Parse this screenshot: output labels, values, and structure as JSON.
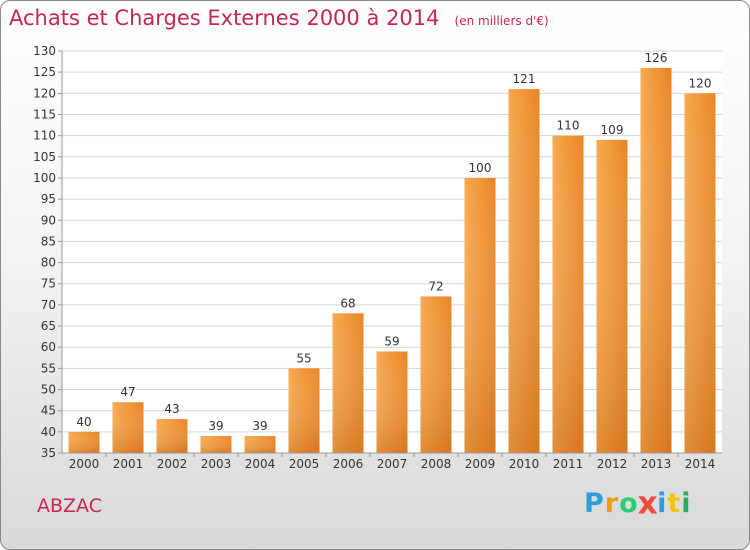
{
  "header": {
    "title": "Achats et Charges Externes 2000 à 2014",
    "subtitle": "(en milliers d'€)"
  },
  "footer": {
    "commune": "ABZAC",
    "brand_letters": [
      "P",
      "r",
      "o",
      "x",
      "i",
      "t",
      "i"
    ],
    "brand_colors": [
      "#2a9fd6",
      "#f39c12",
      "#2ecc71",
      "#e74c3c",
      "#3498db",
      "#f1c40f",
      "#27ae60"
    ]
  },
  "chart_data": {
    "type": "bar",
    "categories": [
      "2000",
      "2001",
      "2002",
      "2003",
      "2004",
      "2005",
      "2006",
      "2007",
      "2008",
      "2009",
      "2010",
      "2011",
      "2012",
      "2013",
      "2014"
    ],
    "values": [
      40,
      47,
      43,
      39,
      39,
      55,
      68,
      59,
      72,
      100,
      121,
      110,
      109,
      126,
      120
    ],
    "ylim": [
      35,
      130
    ],
    "yticks": [
      35,
      40,
      45,
      50,
      55,
      60,
      65,
      70,
      75,
      80,
      85,
      90,
      95,
      100,
      105,
      110,
      115,
      120,
      125,
      130
    ],
    "grid": true,
    "bar_color": "#ef8e2c",
    "title": "Achats et Charges Externes 2000 à 2014",
    "xlabel": "",
    "ylabel": ""
  }
}
